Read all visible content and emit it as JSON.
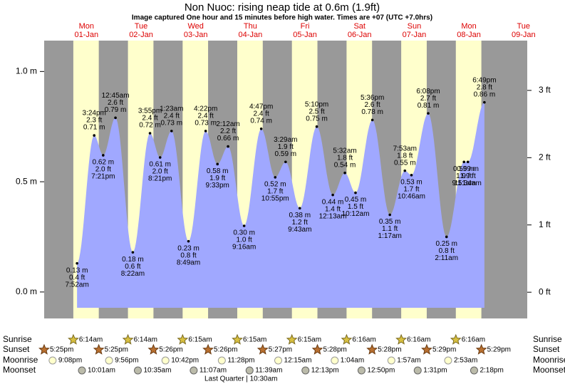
{
  "title": "Non Nuoc: rising  neap tide at 0.6m (1.9ft)",
  "subtitle": "Image captured One hour and 15 minutes before high water. Times are +07 (UTC +7.0hrs)",
  "chart_data": {
    "type": "tide",
    "days": [
      {
        "weekday": "Mon",
        "date": "01-Jan"
      },
      {
        "weekday": "Tue",
        "date": "02-Jan"
      },
      {
        "weekday": "Wed",
        "date": "03-Jan"
      },
      {
        "weekday": "Thu",
        "date": "04-Jan"
      },
      {
        "weekday": "Fri",
        "date": "05-Jan"
      },
      {
        "weekday": "Sat",
        "date": "06-Jan"
      },
      {
        "weekday": "Sun",
        "date": "07-Jan"
      },
      {
        "weekday": "Mon",
        "date": "08-Jan"
      },
      {
        "weekday": "Tue",
        "date": "09-Jan"
      }
    ],
    "ylim": [
      -0.12,
      1.14
    ],
    "yticks": [
      {
        "value": 0,
        "label": "0.0 m"
      },
      {
        "value": 0.5,
        "label": "0.5 m"
      },
      {
        "value": 1,
        "label": "1.0 m"
      }
    ],
    "y2lim": [
      -0.39,
      3.74
    ],
    "y2ticks": [
      {
        "value": 0,
        "label": "0 ft"
      },
      {
        "value": 1,
        "label": "1 ft"
      },
      {
        "value": 2,
        "label": "2 ft"
      },
      {
        "value": 3,
        "label": "3 ft"
      }
    ],
    "fill_color": "#a0a8ff",
    "day_color": "#ffffcc",
    "night_color": "#999999",
    "tides": [
      {
        "day": 0,
        "time": "7:52am",
        "height": 0.13,
        "height_label": "0.13 m",
        "feet_label": "0.4 ft"
      },
      {
        "day": 0,
        "time": "3:24pm",
        "height": 0.71,
        "height_label": "0.71 m",
        "feet_label": "2.3 ft"
      },
      {
        "day": 0,
        "time": "7:21pm",
        "height": 0.62,
        "height_label": "0.62 m",
        "feet_label": "2.0 ft"
      },
      {
        "day": 1,
        "time": "12:45am",
        "height": 0.79,
        "height_label": "0.79 m",
        "feet_label": "2.6 ft"
      },
      {
        "day": 1,
        "time": "8:22am",
        "height": 0.18,
        "height_label": "0.18 m",
        "feet_label": "0.6 ft"
      },
      {
        "day": 1,
        "time": "3:55pm",
        "height": 0.72,
        "height_label": "0.72 m",
        "feet_label": "2.4 ft"
      },
      {
        "day": 1,
        "time": "8:21pm",
        "height": 0.61,
        "height_label": "0.61 m",
        "feet_label": "2.0 ft"
      },
      {
        "day": 2,
        "time": "1:23am",
        "height": 0.73,
        "height_label": "0.73 m",
        "feet_label": "2.4 ft"
      },
      {
        "day": 2,
        "time": "8:49am",
        "height": 0.23,
        "height_label": "0.23 m",
        "feet_label": "0.8 ft"
      },
      {
        "day": 2,
        "time": "4:22pm",
        "height": 0.73,
        "height_label": "0.73 m",
        "feet_label": "2.4 ft"
      },
      {
        "day": 2,
        "time": "9:33pm",
        "height": 0.58,
        "height_label": "0.58 m",
        "feet_label": "1.9 ft"
      },
      {
        "day": 3,
        "time": "2:12am",
        "height": 0.66,
        "height_label": "0.66 m",
        "feet_label": "2.2 ft"
      },
      {
        "day": 3,
        "time": "9:16am",
        "height": 0.3,
        "height_label": "0.30 m",
        "feet_label": "1.0 ft"
      },
      {
        "day": 3,
        "time": "4:47pm",
        "height": 0.74,
        "height_label": "0.74 m",
        "feet_label": "2.4 ft"
      },
      {
        "day": 3,
        "time": "10:55pm",
        "height": 0.52,
        "height_label": "0.52 m",
        "feet_label": "1.7 ft"
      },
      {
        "day": 4,
        "time": "3:29am",
        "height": 0.59,
        "height_label": "0.59 m",
        "feet_label": "1.9 ft"
      },
      {
        "day": 4,
        "time": "9:43am",
        "height": 0.38,
        "height_label": "0.38 m",
        "feet_label": "1.2 ft"
      },
      {
        "day": 4,
        "time": "5:10pm",
        "height": 0.75,
        "height_label": "0.75 m",
        "feet_label": "2.5 ft"
      },
      {
        "day": 5,
        "time": "12:13am",
        "height": 0.44,
        "height_label": "0.44 m",
        "feet_label": "1.4 ft"
      },
      {
        "day": 5,
        "time": "5:32am",
        "height": 0.54,
        "height_label": "0.54 m",
        "feet_label": "1.8 ft"
      },
      {
        "day": 5,
        "time": "10:12am",
        "height": 0.45,
        "height_label": "0.45 m",
        "feet_label": "1.5 ft"
      },
      {
        "day": 5,
        "time": "5:36pm",
        "height": 0.78,
        "height_label": "0.78 m",
        "feet_label": "2.6 ft"
      },
      {
        "day": 6,
        "time": "1:17am",
        "height": 0.35,
        "height_label": "0.35 m",
        "feet_label": "1.1 ft"
      },
      {
        "day": 6,
        "time": "7:53am",
        "height": 0.55,
        "height_label": "0.55 m",
        "feet_label": "1.8 ft"
      },
      {
        "day": 6,
        "time": "10:46am",
        "height": 0.53,
        "height_label": "0.53 m",
        "feet_label": "1.7 ft"
      },
      {
        "day": 6,
        "time": "6:08pm",
        "height": 0.81,
        "height_label": "0.81 m",
        "feet_label": "2.7 ft"
      },
      {
        "day": 7,
        "time": "2:11am",
        "height": 0.25,
        "height_label": "0.25 m",
        "feet_label": "0.8 ft"
      },
      {
        "day": 7,
        "time": "9:51am",
        "height": 0.59,
        "height_label": "0.59 m",
        "feet_label": "1.9 ft"
      },
      {
        "day": 7,
        "time": "11:34am",
        "height": 0.59,
        "height_label": "0.59 m",
        "feet_label": "1.9 ft"
      },
      {
        "day": 7,
        "time": "6:49pm",
        "height": 0.86,
        "height_label": "0.86 m",
        "feet_label": "2.8 ft"
      }
    ]
  },
  "almanac": {
    "rows": [
      {
        "label": "Sunrise",
        "events": [
          {
            "day": 0,
            "time": "6:14am"
          },
          {
            "day": 1,
            "time": "6:14am"
          },
          {
            "day": 2,
            "time": "6:15am"
          },
          {
            "day": 3,
            "time": "6:15am"
          },
          {
            "day": 4,
            "time": "6:15am"
          },
          {
            "day": 5,
            "time": "6:16am"
          },
          {
            "day": 6,
            "time": "6:16am"
          },
          {
            "day": 7,
            "time": "6:16am"
          }
        ]
      },
      {
        "label": "Sunset",
        "events": [
          {
            "day": -1,
            "time": "5:25pm"
          },
          {
            "day": 0,
            "time": "5:25pm"
          },
          {
            "day": 1,
            "time": "5:26pm"
          },
          {
            "day": 2,
            "time": "5:26pm"
          },
          {
            "day": 3,
            "time": "5:27pm"
          },
          {
            "day": 4,
            "time": "5:28pm"
          },
          {
            "day": 5,
            "time": "5:28pm"
          },
          {
            "day": 6,
            "time": "5:29pm"
          },
          {
            "day": 7,
            "time": "5:29pm"
          }
        ]
      },
      {
        "label": "Moonrise",
        "events": [
          {
            "day": -1,
            "time": "9:08pm"
          },
          {
            "day": 0,
            "time": "9:56pm"
          },
          {
            "day": 1,
            "time": "10:42pm"
          },
          {
            "day": 2,
            "time": "11:28pm"
          },
          {
            "day": 4,
            "time": "12:15am"
          },
          {
            "day": 5,
            "time": "1:04am"
          },
          {
            "day": 6,
            "time": "1:57am"
          },
          {
            "day": 7,
            "time": "2:53am"
          }
        ]
      },
      {
        "label": "Moonset",
        "events": [
          {
            "day": 0,
            "time": "10:01am"
          },
          {
            "day": 1,
            "time": "10:35am"
          },
          {
            "day": 2,
            "time": "11:07am"
          },
          {
            "day": 3,
            "time": "11:39am"
          },
          {
            "day": 4,
            "time": "12:13pm"
          },
          {
            "day": 5,
            "time": "12:50pm"
          },
          {
            "day": 6,
            "time": "1:31pm"
          },
          {
            "day": 7,
            "time": "2:18pm"
          }
        ]
      }
    ],
    "moon_phase": {
      "day": 3,
      "name": "Last Quarter",
      "time": "10:30am"
    }
  }
}
